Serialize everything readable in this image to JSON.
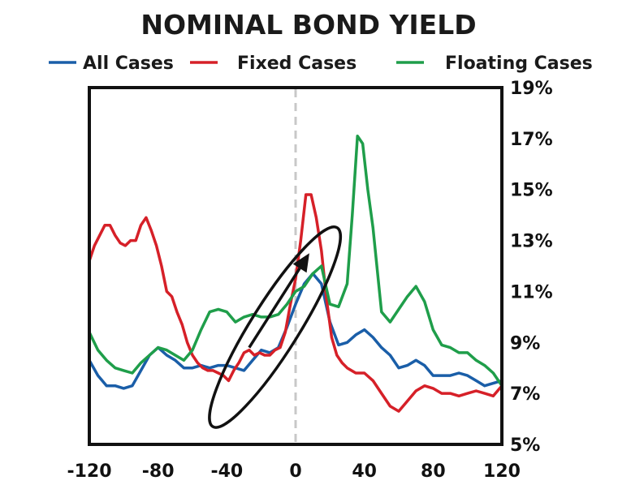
{
  "chart_data": {
    "type": "line",
    "title": "NOMINAL BOND YIELD",
    "xlabel": "",
    "ylabel": "",
    "xlim": [
      -120,
      120
    ],
    "ylim": [
      5,
      19
    ],
    "x_ticks": [
      -120,
      -80,
      -40,
      0,
      40,
      80,
      120
    ],
    "x_tick_labels": [
      "-120",
      "-80",
      "-40",
      "0",
      "40",
      "80",
      "120"
    ],
    "y_ticks": [
      5,
      7,
      9,
      11,
      13,
      15,
      17,
      19
    ],
    "y_tick_labels": [
      "5%",
      "7%",
      "9%",
      "11%",
      "13%",
      "15%",
      "17%",
      "19%"
    ],
    "y_axis_side": "right",
    "grid": false,
    "legend_position": "top",
    "reference_line_x": 0,
    "series": [
      {
        "name": "All Cases",
        "color": "#1a5ea8",
        "x": [
          -120,
          -115,
          -110,
          -105,
          -100,
          -95,
          -90,
          -85,
          -80,
          -75,
          -70,
          -65,
          -60,
          -55,
          -50,
          -45,
          -40,
          -35,
          -30,
          -25,
          -20,
          -15,
          -10,
          -5,
          0,
          5,
          10,
          15,
          20,
          25,
          30,
          35,
          40,
          45,
          50,
          55,
          60,
          65,
          70,
          75,
          80,
          85,
          90,
          95,
          100,
          105,
          110,
          115,
          120
        ],
        "y": [
          8.3,
          7.7,
          7.3,
          7.3,
          7.2,
          7.3,
          7.9,
          8.5,
          8.8,
          8.5,
          8.3,
          8.0,
          8.0,
          8.1,
          8.0,
          8.1,
          8.1,
          8.0,
          7.9,
          8.3,
          8.7,
          8.6,
          8.8,
          9.6,
          10.5,
          11.3,
          11.7,
          11.3,
          9.8,
          8.9,
          9.0,
          9.3,
          9.5,
          9.2,
          8.8,
          8.5,
          8.0,
          8.1,
          8.3,
          8.1,
          7.7,
          7.7,
          7.7,
          7.8,
          7.7,
          7.5,
          7.3,
          7.4,
          7.5
        ]
      },
      {
        "name": "Fixed Cases",
        "color": "#d62028",
        "x": [
          -120,
          -117,
          -114,
          -111,
          -108,
          -105,
          -102,
          -99,
          -96,
          -93,
          -90,
          -87,
          -84,
          -81,
          -78,
          -75,
          -72,
          -69,
          -66,
          -63,
          -60,
          -57,
          -54,
          -51,
          -48,
          -45,
          -42,
          -39,
          -36,
          -33,
          -30,
          -27,
          -24,
          -21,
          -18,
          -15,
          -12,
          -9,
          -6,
          -3,
          0,
          3,
          6,
          9,
          12,
          15,
          18,
          21,
          24,
          27,
          30,
          35,
          40,
          45,
          50,
          55,
          60,
          65,
          70,
          75,
          80,
          85,
          90,
          95,
          100,
          105,
          110,
          115,
          120
        ],
        "y": [
          12.2,
          12.8,
          13.2,
          13.6,
          13.6,
          13.2,
          12.9,
          12.8,
          13.0,
          13.0,
          13.6,
          13.9,
          13.4,
          12.8,
          12.0,
          11.0,
          10.8,
          10.2,
          9.7,
          9.0,
          8.5,
          8.2,
          8.0,
          7.9,
          7.9,
          7.8,
          7.7,
          7.5,
          7.9,
          8.2,
          8.6,
          8.7,
          8.5,
          8.6,
          8.5,
          8.5,
          8.7,
          8.8,
          9.4,
          10.5,
          11.5,
          13.0,
          14.8,
          14.8,
          13.9,
          12.6,
          10.7,
          9.2,
          8.5,
          8.2,
          8.0,
          7.8,
          7.8,
          7.5,
          7.0,
          6.5,
          6.3,
          6.7,
          7.1,
          7.3,
          7.2,
          7.0,
          7.0,
          6.9,
          7.0,
          7.1,
          7.0,
          6.9,
          7.3
        ]
      },
      {
        "name": "Floating Cases",
        "color": "#1f9e4a",
        "x": [
          -120,
          -115,
          -110,
          -105,
          -100,
          -95,
          -90,
          -85,
          -80,
          -75,
          -70,
          -65,
          -60,
          -55,
          -50,
          -45,
          -40,
          -35,
          -30,
          -25,
          -20,
          -15,
          -10,
          -5,
          0,
          5,
          10,
          15,
          20,
          25,
          30,
          33,
          36,
          39,
          42,
          45,
          50,
          55,
          60,
          65,
          70,
          75,
          80,
          85,
          90,
          95,
          100,
          105,
          110,
          115,
          120
        ],
        "y": [
          9.4,
          8.7,
          8.3,
          8.0,
          7.9,
          7.8,
          8.2,
          8.5,
          8.8,
          8.7,
          8.5,
          8.3,
          8.7,
          9.5,
          10.2,
          10.3,
          10.2,
          9.8,
          10.0,
          10.1,
          10.0,
          10.0,
          10.1,
          10.5,
          11.0,
          11.2,
          11.7,
          12.0,
          10.5,
          10.4,
          11.3,
          14.0,
          17.1,
          16.8,
          15.0,
          13.5,
          10.2,
          9.8,
          10.3,
          10.8,
          11.2,
          10.6,
          9.5,
          8.9,
          8.8,
          8.6,
          8.6,
          8.3,
          8.1,
          7.8,
          7.3
        ]
      }
    ],
    "annotations": [
      {
        "type": "ellipse",
        "center": [
          -12,
          9.6
        ],
        "semi_axes_data": [
          14,
          4.6
        ],
        "rotation_deg": 32,
        "color": "#111111"
      },
      {
        "type": "arrow",
        "from": [
          -27,
          8.8
        ],
        "to": [
          8,
          12.5
        ],
        "color": "#111111"
      }
    ]
  }
}
